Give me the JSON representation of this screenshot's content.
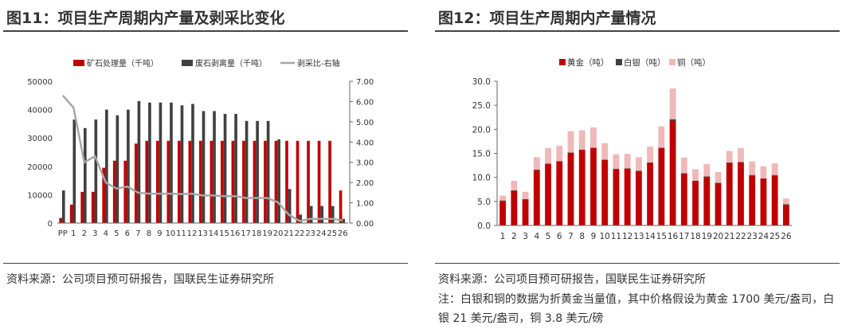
{
  "left": {
    "title": "图11：项目生产周期内产量及剥采比变化",
    "source": "资料来源：公司项目预可研报告，国联民生证券研究所"
  },
  "right": {
    "title": "图12：项目生产周期内产量情况",
    "source": "资料来源：公司项目预可研报告，国联民生证券研究所",
    "note": "注：白银和铜的数据为折黄金当量值，其中价格假设为黄金 1700 美元/盎司，白银 21 美元/盎司，铜 3.8 美元/磅"
  },
  "chart_data": [
    {
      "type": "bar",
      "title": "",
      "categories": [
        "PP",
        "1",
        "2",
        "3",
        "4",
        "5",
        "6",
        "7",
        "8",
        "9",
        "10",
        "11",
        "12",
        "13",
        "14",
        "15",
        "16",
        "17",
        "18",
        "19",
        "20",
        "21",
        "22",
        "23",
        "24",
        "25",
        "26"
      ],
      "series": [
        {
          "name": "矿石处理量（千吨）",
          "kind": "bar",
          "color": "#c00000",
          "values": [
            1800,
            6500,
            11000,
            11000,
            19500,
            22000,
            22000,
            28000,
            29000,
            29000,
            29000,
            29000,
            29000,
            29000,
            29000,
            29000,
            29000,
            29000,
            29000,
            29000,
            29000,
            29000,
            29000,
            29000,
            29000,
            29000,
            11500
          ]
        },
        {
          "name": "废石剥离量（千吨）",
          "kind": "bar",
          "color": "#404040",
          "values": [
            11500,
            36500,
            33500,
            36500,
            40000,
            38000,
            40000,
            43000,
            42500,
            42500,
            42500,
            41500,
            42000,
            39500,
            39500,
            38500,
            38500,
            36000,
            36000,
            36000,
            29500,
            12000,
            3000,
            6000,
            6000,
            6000,
            1500
          ]
        },
        {
          "name": "剥采比-右轴",
          "kind": "line",
          "axis": "right",
          "color": "#a6a6a6",
          "values": [
            6.3,
            5.7,
            3.0,
            3.3,
            2.0,
            1.7,
            1.8,
            1.5,
            1.45,
            1.45,
            1.45,
            1.43,
            1.45,
            1.36,
            1.36,
            1.33,
            1.33,
            1.24,
            1.24,
            1.24,
            1.02,
            0.41,
            0.1,
            0.21,
            0.21,
            0.21,
            0.13
          ]
        }
      ],
      "ylim": [
        0,
        50000
      ],
      "yticks": [
        "0",
        "10000",
        "20000",
        "30000",
        "40000",
        "50000"
      ],
      "y2lim": [
        0,
        7
      ],
      "y2ticks": [
        "0.00",
        "1.00",
        "2.00",
        "3.00",
        "4.00",
        "5.00",
        "6.00",
        "7.00"
      ],
      "legend": "top"
    },
    {
      "type": "bar",
      "stacked": true,
      "title": "",
      "categories": [
        "1",
        "2",
        "3",
        "4",
        "5",
        "6",
        "7",
        "8",
        "9",
        "10",
        "11",
        "12",
        "13",
        "14",
        "15",
        "16",
        "17",
        "18",
        "19",
        "20",
        "21",
        "22",
        "23",
        "24",
        "25",
        "26"
      ],
      "series": [
        {
          "name": "黄金（吨）",
          "color": "#c00000",
          "values": [
            5.1,
            7.2,
            5.4,
            11.5,
            12.8,
            13.3,
            15.1,
            15.7,
            16.1,
            13.6,
            11.7,
            11.8,
            11.3,
            13.0,
            16.1,
            21.8,
            10.8,
            9.2,
            10.1,
            8.8,
            13.0,
            13.1,
            10.4,
            9.7,
            10.4,
            4.3
          ]
        },
        {
          "name": "白银（吨）",
          "color": "#404040",
          "values": [
            0.1,
            0.1,
            0.1,
            0.1,
            0.1,
            0.1,
            0.1,
            0.1,
            0.1,
            0.1,
            0.1,
            0.1,
            0.1,
            0.1,
            0.1,
            0.3,
            0.1,
            0.1,
            0.1,
            0.1,
            0.1,
            0.1,
            0.1,
            0.1,
            0.1,
            0.1
          ]
        },
        {
          "name": "铜（吨）",
          "color": "#f0b8b8",
          "values": [
            1.0,
            2.0,
            1.5,
            2.6,
            3.2,
            3.2,
            4.4,
            4.0,
            4.2,
            3.4,
            3.0,
            3.0,
            2.8,
            3.3,
            4.4,
            6.4,
            3.2,
            2.4,
            2.6,
            2.2,
            2.4,
            2.9,
            2.8,
            2.5,
            2.4,
            1.2
          ]
        }
      ],
      "ylim": [
        0,
        30
      ],
      "yticks": [
        "0.0",
        "5.0",
        "10.0",
        "15.0",
        "20.0",
        "25.0",
        "30.0"
      ],
      "legend": "top"
    }
  ]
}
